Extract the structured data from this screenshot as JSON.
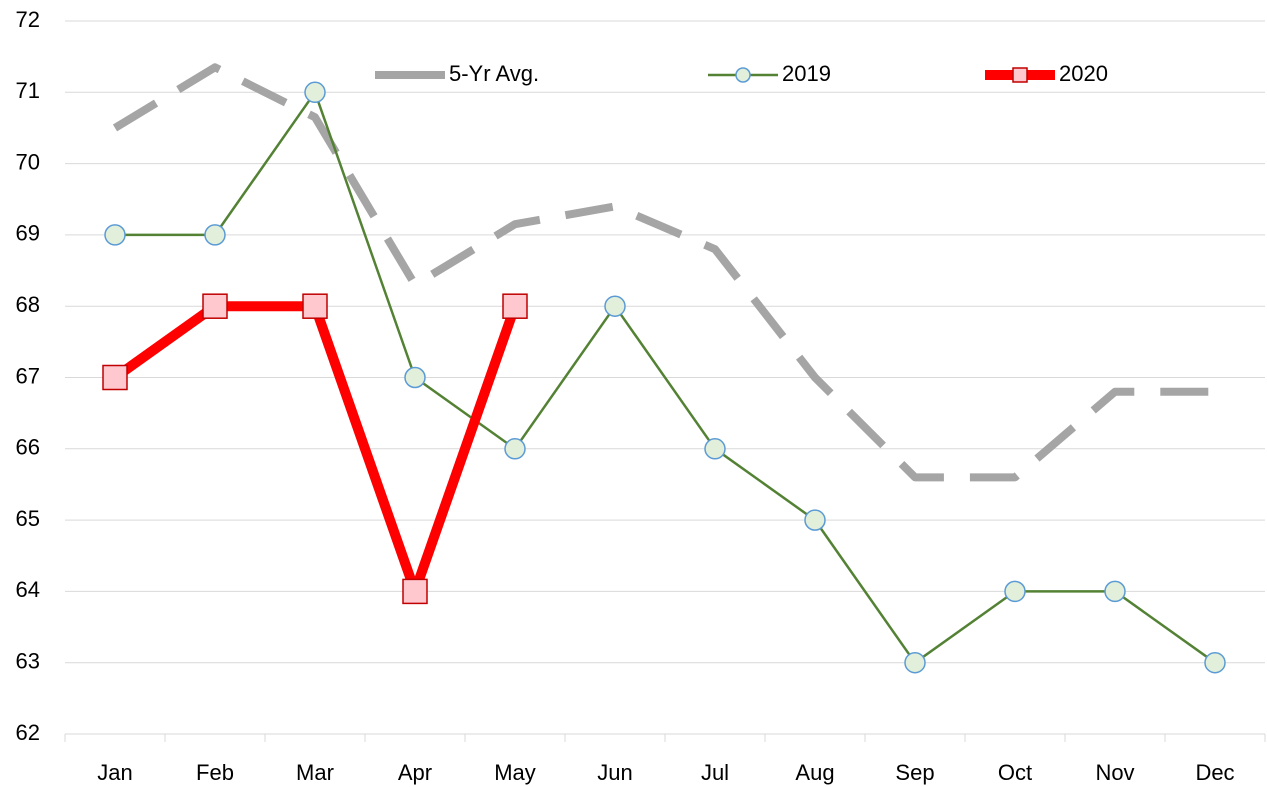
{
  "chart_data": {
    "type": "line",
    "categories": [
      "Jan",
      "Feb",
      "Mar",
      "Apr",
      "May",
      "Jun",
      "Jul",
      "Aug",
      "Sep",
      "Oct",
      "Nov",
      "Dec"
    ],
    "series": [
      {
        "name": "5-Yr Avg.",
        "color": "#a5a5a5",
        "line_style": "dashed",
        "marker": "none",
        "values": [
          70.5,
          71.35,
          70.65,
          68.3,
          69.15,
          69.4,
          68.8,
          67.0,
          65.6,
          65.6,
          66.8,
          66.8
        ]
      },
      {
        "name": "2019",
        "color": "#548235",
        "line_style": "solid",
        "marker": "circle",
        "marker_fill": "#e2efda",
        "marker_stroke": "#5b9bd5",
        "values": [
          69,
          69,
          71,
          67,
          66,
          68,
          66,
          65,
          63,
          64,
          64,
          63
        ]
      },
      {
        "name": "2020",
        "color": "#ff0000",
        "line_style": "thick",
        "marker": "square",
        "marker_fill": "#ffc7ce",
        "marker_stroke": "#c00000",
        "values": [
          67,
          68,
          68,
          64,
          68,
          null,
          null,
          null,
          null,
          null,
          null,
          null
        ]
      }
    ],
    "ylim": [
      62,
      72
    ],
    "yticks": [
      62,
      63,
      64,
      65,
      66,
      67,
      68,
      69,
      70,
      71,
      72
    ],
    "grid": true,
    "legend": "top"
  }
}
